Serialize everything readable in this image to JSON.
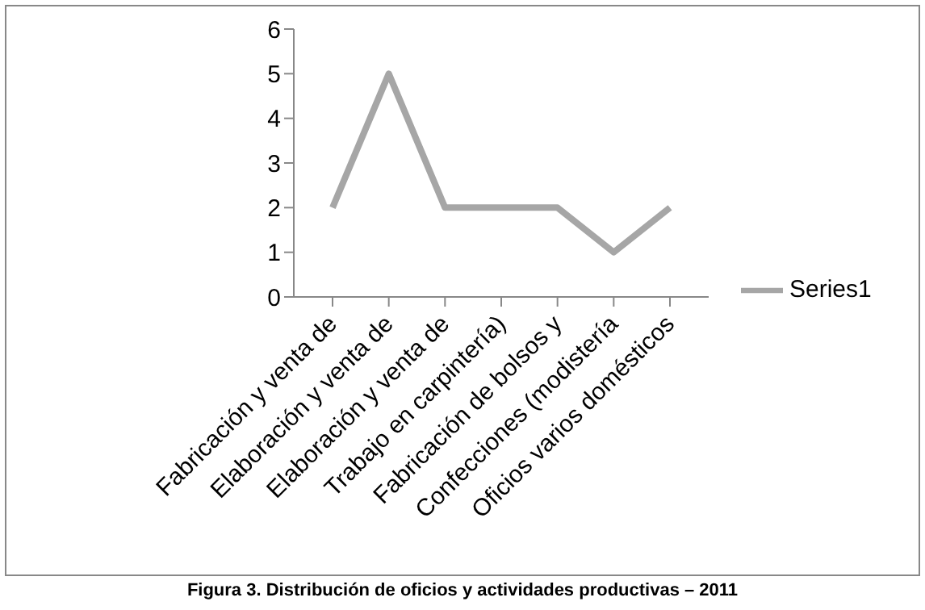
{
  "chart_data": {
    "type": "line",
    "categories": [
      "Fabricación y venta de",
      "Elaboración y venta de",
      "Elaboración y venta de",
      "Trabajo en carpintería)",
      "Fabricación de bolsos y",
      "Confecciones (modistería",
      "Oficios varios domésticos"
    ],
    "series": [
      {
        "name": "Series1",
        "color": "#a6a6a6",
        "values": [
          2,
          5,
          2,
          2,
          2,
          1,
          2
        ]
      }
    ],
    "ylim": [
      0,
      6
    ],
    "yticks": [
      0,
      1,
      2,
      3,
      4,
      5,
      6
    ],
    "legend": "right",
    "marker": "none",
    "line_style": "solid",
    "annotations": [
      "Figura 3.  Distribución de oficios y actividades productivas – 2011"
    ]
  }
}
